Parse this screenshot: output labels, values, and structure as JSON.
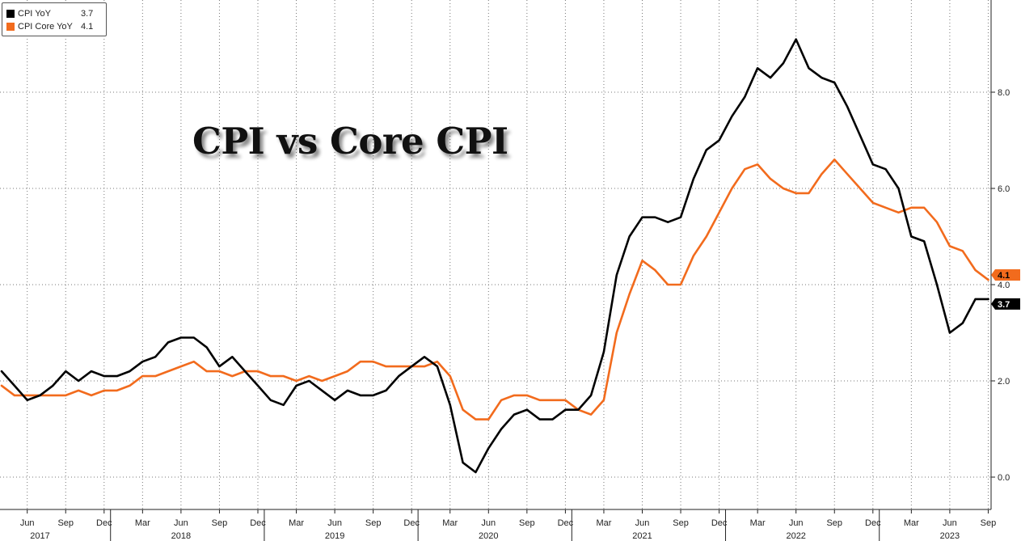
{
  "legend": {
    "items": [
      {
        "name": "CPI YoY",
        "value": "3.7",
        "color": "#000000"
      },
      {
        "name": "CPI Core YoY",
        "value": "4.1",
        "color": "#f26b1d"
      }
    ]
  },
  "chart_data": {
    "type": "line",
    "title": "CPI vs Core CPI",
    "xlabel": "",
    "ylabel": "",
    "ylim": [
      -0.8,
      10.0
    ],
    "y_ticks": [
      "0.0",
      "2.0",
      "4.0",
      "6.0",
      "8.0"
    ],
    "y_tick_values": [
      0,
      2,
      4,
      6,
      8
    ],
    "grid": true,
    "legend_position": "top-left",
    "x_start": "2017-04",
    "month_labels": [
      {
        "label": "Jun",
        "date": "2017-06"
      },
      {
        "label": "Sep",
        "date": "2017-09"
      },
      {
        "label": "Dec",
        "date": "2017-12"
      },
      {
        "label": "Mar",
        "date": "2018-03"
      },
      {
        "label": "Jun",
        "date": "2018-06"
      },
      {
        "label": "Sep",
        "date": "2018-09"
      },
      {
        "label": "Dec",
        "date": "2018-12"
      },
      {
        "label": "Mar",
        "date": "2019-03"
      },
      {
        "label": "Jun",
        "date": "2019-06"
      },
      {
        "label": "Sep",
        "date": "2019-09"
      },
      {
        "label": "Dec",
        "date": "2019-12"
      },
      {
        "label": "Mar",
        "date": "2020-03"
      },
      {
        "label": "Jun",
        "date": "2020-06"
      },
      {
        "label": "Sep",
        "date": "2020-09"
      },
      {
        "label": "Dec",
        "date": "2020-12"
      },
      {
        "label": "Mar",
        "date": "2021-03"
      },
      {
        "label": "Jun",
        "date": "2021-06"
      },
      {
        "label": "Sep",
        "date": "2021-09"
      },
      {
        "label": "Dec",
        "date": "2021-12"
      },
      {
        "label": "Mar",
        "date": "2022-03"
      },
      {
        "label": "Jun",
        "date": "2022-06"
      },
      {
        "label": "Sep",
        "date": "2022-09"
      },
      {
        "label": "Dec",
        "date": "2022-12"
      },
      {
        "label": "Mar",
        "date": "2023-03"
      },
      {
        "label": "Jun",
        "date": "2023-06"
      },
      {
        "label": "Sep",
        "date": "2023-09"
      }
    ],
    "year_labels": [
      {
        "label": "2017",
        "date": "2017-07"
      },
      {
        "label": "2018",
        "date": "2018-06"
      },
      {
        "label": "2019",
        "date": "2019-06"
      },
      {
        "label": "2020",
        "date": "2020-06"
      },
      {
        "label": "2021",
        "date": "2021-06"
      },
      {
        "label": "2022",
        "date": "2022-06"
      },
      {
        "label": "2023",
        "date": "2023-06"
      }
    ],
    "series": [
      {
        "name": "CPI YoY",
        "color": "#000000",
        "last_value": "3.7",
        "values": [
          2.2,
          1.9,
          1.6,
          1.7,
          1.9,
          2.2,
          2.0,
          2.2,
          2.1,
          2.1,
          2.2,
          2.4,
          2.5,
          2.8,
          2.9,
          2.9,
          2.7,
          2.3,
          2.5,
          2.2,
          1.9,
          1.6,
          1.5,
          1.9,
          2.0,
          1.8,
          1.6,
          1.8,
          1.7,
          1.7,
          1.8,
          2.1,
          2.3,
          2.5,
          2.3,
          1.5,
          0.3,
          0.1,
          0.6,
          1.0,
          1.3,
          1.4,
          1.2,
          1.2,
          1.4,
          1.4,
          1.7,
          2.6,
          4.2,
          5.0,
          5.4,
          5.4,
          5.3,
          5.4,
          6.2,
          6.8,
          7.0,
          7.5,
          7.9,
          8.5,
          8.3,
          8.6,
          9.1,
          8.5,
          8.3,
          8.2,
          7.7,
          7.1,
          6.5,
          6.4,
          6.0,
          5.0,
          4.9,
          4.0,
          3.0,
          3.2,
          3.7,
          3.7
        ]
      },
      {
        "name": "CPI Core YoY",
        "color": "#f26b1d",
        "last_value": "4.1",
        "values": [
          1.9,
          1.7,
          1.7,
          1.7,
          1.7,
          1.7,
          1.8,
          1.7,
          1.8,
          1.8,
          1.9,
          2.1,
          2.1,
          2.2,
          2.3,
          2.4,
          2.2,
          2.2,
          2.1,
          2.2,
          2.2,
          2.1,
          2.1,
          2.0,
          2.1,
          2.0,
          2.1,
          2.2,
          2.4,
          2.4,
          2.3,
          2.3,
          2.3,
          2.3,
          2.4,
          2.1,
          1.4,
          1.2,
          1.2,
          1.6,
          1.7,
          1.7,
          1.6,
          1.6,
          1.6,
          1.4,
          1.3,
          1.6,
          3.0,
          3.8,
          4.5,
          4.3,
          4.0,
          4.0,
          4.6,
          5.0,
          5.5,
          6.0,
          6.4,
          6.5,
          6.2,
          6.0,
          5.9,
          5.9,
          6.3,
          6.6,
          6.3,
          6.0,
          5.7,
          5.6,
          5.5,
          5.6,
          5.6,
          5.3,
          4.8,
          4.7,
          4.3,
          4.1
        ]
      }
    ]
  }
}
